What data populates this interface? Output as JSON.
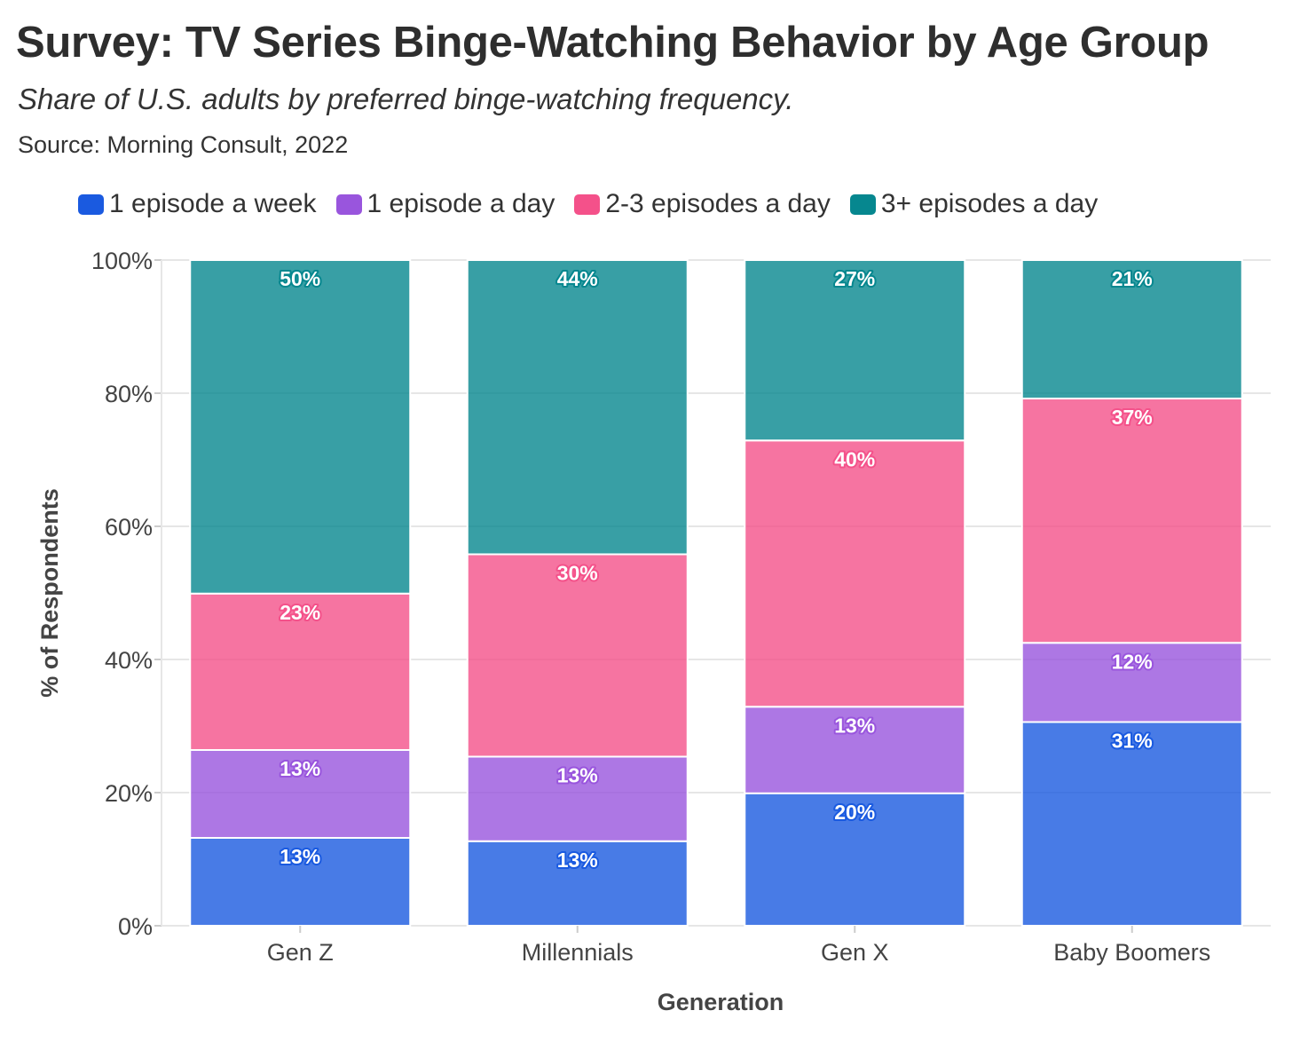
{
  "title": "Survey: TV Series Binge-Watching Behavior by Age Group",
  "subtitle": "Share of U.S. adults by preferred binge-watching frequency.",
  "source": "Source: Morning Consult, 2022",
  "chart_data": {
    "type": "bar",
    "stacked": true,
    "title": "Survey: TV Series Binge-Watching Behavior by Age Group",
    "subtitle": "Share of U.S. adults by preferred binge-watching frequency.",
    "xlabel": "Generation",
    "ylabel": "% of Respondents",
    "categories": [
      "Gen Z",
      "Millennials",
      "Gen X",
      "Baby Boomers"
    ],
    "series": [
      {
        "name": "1 episode a week",
        "color": "#1a5ae0",
        "values": [
          13.2,
          12.7,
          19.9,
          30.6
        ]
      },
      {
        "name": "1 episode a day",
        "color": "#9955dd",
        "values": [
          13.2,
          12.7,
          13.0,
          11.9
        ]
      },
      {
        "name": "2-3 episodes a day",
        "color": "#f4518a",
        "values": [
          23.5,
          30.4,
          40.0,
          36.7
        ]
      },
      {
        "name": "3+ episodes a day",
        "color": "#06878f",
        "values": [
          50.1,
          44.2,
          27.1,
          20.8
        ]
      }
    ],
    "data_labels": [
      [
        "13%",
        "13%",
        "20%",
        "31%"
      ],
      [
        "13%",
        "13%",
        "13%",
        "12%"
      ],
      [
        "23%",
        "30%",
        "40%",
        "37%"
      ],
      [
        "50%",
        "44%",
        "27%",
        "21%"
      ]
    ],
    "ylim": [
      0,
      100
    ],
    "yticks": [
      0,
      20,
      40,
      60,
      80,
      100
    ],
    "ytick_labels": [
      "0%",
      "20%",
      "40%",
      "60%",
      "80%",
      "100%"
    ],
    "grid": true,
    "legend": "top-left"
  }
}
